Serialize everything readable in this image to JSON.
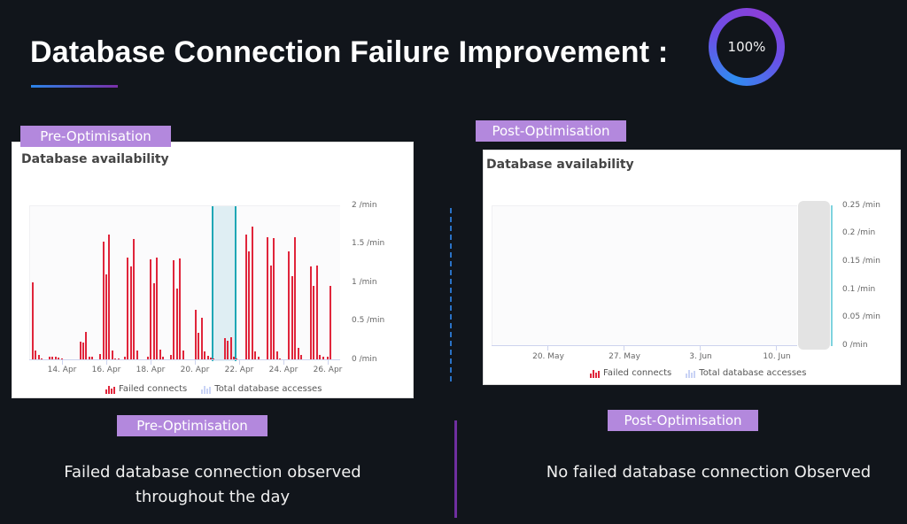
{
  "header": {
    "title": "Database Connection Failure Improvement :",
    "progress_ring": {
      "value_label": "100%",
      "value": 100
    }
  },
  "labels": {
    "pre_top": "Pre-Optimisation",
    "post_top": "Post-Optimisation",
    "pre_bottom": "Pre-Optimisation",
    "post_bottom": "Post-Optimisation"
  },
  "captions": {
    "pre_line1": "Failed database connection observed",
    "pre_line2": "throughout the day",
    "post": "No failed database connection Observed"
  },
  "pre_chart": {
    "title": "Database availability",
    "y_ticks": [
      "2 /min",
      "1.5 /min",
      "1 /min",
      "0.5 /min",
      "0 /min"
    ],
    "x_ticks": [
      "14. Apr",
      "16. Apr",
      "18. Apr",
      "20. Apr",
      "22. Apr",
      "24. Apr",
      "26. Apr"
    ],
    "legend": [
      "Failed connects",
      "Total database accesses"
    ]
  },
  "post_chart": {
    "title": "Database availability",
    "y_ticks": [
      "0.25 /min",
      "0.2 /min",
      "0.15 /min",
      "0.1 /min",
      "0.05 /min",
      "0 /min"
    ],
    "x_ticks": [
      "20. May",
      "27. May",
      "3. Jun",
      "10. Jun"
    ],
    "legend": [
      "Failed connects",
      "Total database accesses"
    ]
  },
  "colors": {
    "background": "#11151b",
    "tag": "#b388dd",
    "failed_bar": "#e0253b",
    "total_accesses": "#c9d3f5",
    "highlight_border": "#1fa7b5",
    "ring_start": "#2f8cf0",
    "ring_end": "#8a3fd8"
  },
  "chart_data": [
    {
      "type": "bar",
      "title": "Database availability (Pre-Optimisation)",
      "xlabel": "",
      "ylabel": "Failed connects (/min)",
      "ylim": [
        0,
        2
      ],
      "x_range": [
        "13. Apr",
        "27. Apr"
      ],
      "series": [
        {
          "name": "Failed connects",
          "x_positions": [
            0.005,
            0.015,
            0.025,
            0.035,
            0.06,
            0.07,
            0.08,
            0.09,
            0.1,
            0.16,
            0.17,
            0.18,
            0.19,
            0.2,
            0.225,
            0.235,
            0.245,
            0.255,
            0.265,
            0.275,
            0.285,
            0.305,
            0.315,
            0.325,
            0.335,
            0.345,
            0.38,
            0.39,
            0.4,
            0.41,
            0.42,
            0.43,
            0.455,
            0.465,
            0.475,
            0.485,
            0.495,
            0.535,
            0.545,
            0.555,
            0.565,
            0.575,
            0.585,
            0.595,
            0.63,
            0.64,
            0.65,
            0.66,
            0.67,
            0.7,
            0.71,
            0.72,
            0.73,
            0.74,
            0.77,
            0.78,
            0.79,
            0.8,
            0.81,
            0.84,
            0.85,
            0.86,
            0.87,
            0.88,
            0.91,
            0.92,
            0.93,
            0.94,
            0.95,
            0.965,
            0.975
          ],
          "values": [
            1.0,
            0.12,
            0.07,
            0.02,
            0.05,
            0.04,
            0.04,
            0.03,
            0.02,
            0.24,
            0.23,
            0.36,
            0.05,
            0.04,
            0.08,
            1.53,
            1.11,
            1.62,
            0.13,
            0.02,
            0.02,
            0.05,
            1.33,
            1.21,
            1.56,
            0.13,
            0.05,
            1.3,
            0.99,
            1.32,
            0.14,
            0.04,
            0.07,
            1.29,
            0.93,
            1.31,
            0.13,
            0.65,
            0.35,
            0.55,
            0.11,
            0.06,
            0.03,
            0.02,
            0.28,
            0.25,
            0.3,
            0.05,
            0.02,
            1.62,
            1.41,
            1.73,
            0.11,
            0.05,
            1.59,
            1.22,
            1.58,
            0.11,
            0.02,
            1.41,
            1.09,
            1.59,
            0.16,
            0.07,
            1.21,
            0.96,
            1.22,
            0.07,
            0.05,
            0.05,
            0.96
          ]
        },
        {
          "name": "Total database accesses",
          "values": []
        }
      ],
      "annotations": [
        "Highlighted time window around 21–22 Apr"
      ]
    },
    {
      "type": "bar",
      "title": "Database availability (Post-Optimisation)",
      "xlabel": "",
      "ylabel": "Failed connects (/min)",
      "ylim": [
        0,
        0.25
      ],
      "x_range": [
        "~13. May",
        "~12. Jun"
      ],
      "series": [
        {
          "name": "Failed connects",
          "values": [
            0
          ]
        },
        {
          "name": "Total database accesses",
          "values": []
        }
      ],
      "annotations": [
        "No failed connects observed"
      ]
    }
  ]
}
